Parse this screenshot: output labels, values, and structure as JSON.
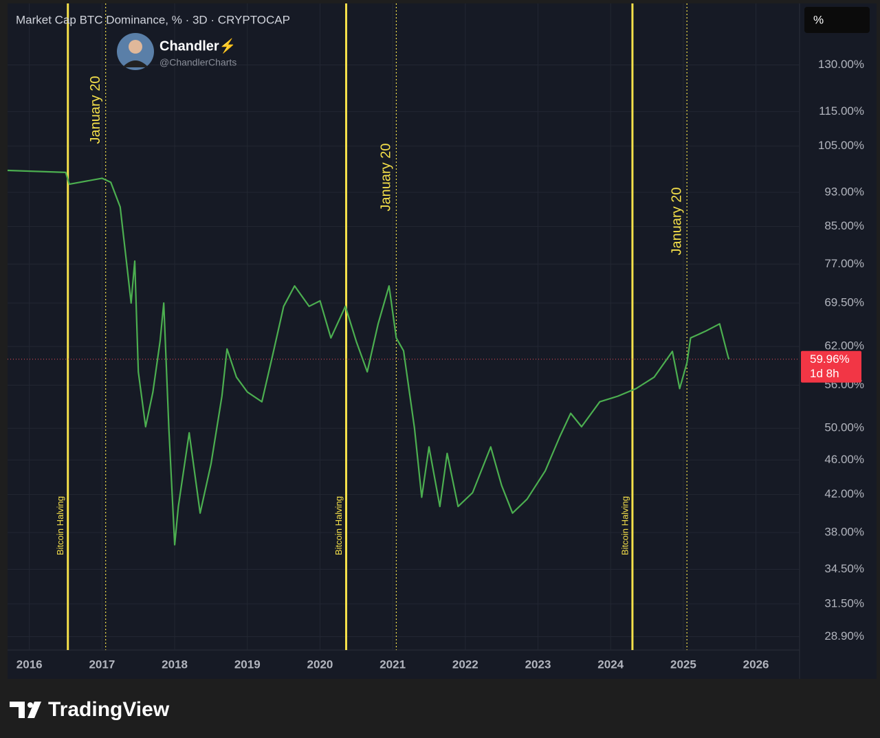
{
  "chart_data": {
    "type": "line",
    "title": "Market Cap BTC Dominance, % · 3D · CRYPTOCAP",
    "unit_button": "%",
    "watermark": {
      "name": "Chandler⚡",
      "handle": "@ChandlerCharts"
    },
    "x": [
      2015.7,
      2016.5,
      2016.55,
      2017.0,
      2017.12,
      2017.25,
      2017.35,
      2017.4,
      2017.45,
      2017.5,
      2017.6,
      2017.7,
      2017.8,
      2017.85,
      2017.92,
      2018.0,
      2018.05,
      2018.2,
      2018.35,
      2018.5,
      2018.65,
      2018.72,
      2018.85,
      2019.0,
      2019.2,
      2019.35,
      2019.5,
      2019.65,
      2019.85,
      2020.0,
      2020.15,
      2020.35,
      2020.5,
      2020.65,
      2020.8,
      2020.95,
      2021.05,
      2021.15,
      2021.3,
      2021.4,
      2021.5,
      2021.65,
      2021.75,
      2021.9,
      2022.1,
      2022.35,
      2022.5,
      2022.65,
      2022.85,
      2023.1,
      2023.3,
      2023.45,
      2023.6,
      2023.85,
      2024.1,
      2024.35,
      2024.6,
      2024.85,
      2024.95,
      2025.05,
      2025.1,
      2025.3,
      2025.5,
      2025.62,
      2025.63
    ],
    "series": [
      {
        "name": "BTC Dominance",
        "color": "#4caf50",
        "values": [
          98.5,
          98,
          95,
          96.5,
          95.5,
          89.5,
          75.7,
          69.5,
          77.6,
          58,
          50.2,
          55,
          62.9,
          69.5,
          50,
          36.8,
          40.7,
          49.4,
          40,
          45.5,
          54.4,
          61.6,
          57.2,
          55,
          53.6,
          60.7,
          68.9,
          72.7,
          68.9,
          69.9,
          63.4,
          68.9,
          62.8,
          58,
          65.8,
          72.7,
          63.4,
          61.3,
          50,
          41.7,
          47.6,
          40.7,
          46.8,
          40.7,
          42.2,
          47.6,
          43,
          40,
          41.5,
          44.7,
          48.9,
          52,
          50.2,
          53.6,
          54.4,
          55.5,
          57.2,
          61.2,
          55.5,
          59.4,
          63.4,
          64.5,
          65.8,
          60.2,
          59.96
        ]
      }
    ],
    "last_value": {
      "value": 59.96,
      "label": "59.96%",
      "countdown": "1d 8h"
    },
    "events": [
      {
        "x": 2016.53,
        "label": "Bitcoin Halving",
        "style": "solid"
      },
      {
        "x": 2017.05,
        "label": "January 20",
        "style": "dotted"
      },
      {
        "x": 2020.36,
        "label": "Bitcoin Halving",
        "style": "solid"
      },
      {
        "x": 2021.05,
        "label": "January 20",
        "style": "dotted"
      },
      {
        "x": 2024.3,
        "label": "Bitcoin Halving",
        "style": "solid"
      },
      {
        "x": 2025.05,
        "label": "January 20",
        "style": "dotted"
      }
    ],
    "log_scale": true,
    "grid": true,
    "xlim": [
      2015.7,
      2026.6
    ],
    "xticks": [
      2016,
      2017,
      2018,
      2019,
      2020,
      2021,
      2022,
      2023,
      2024,
      2025,
      2026
    ],
    "ylim": [
      27.9,
      152
    ],
    "yticks": [
      {
        "value": 130,
        "label": "130.00%"
      },
      {
        "value": 115,
        "label": "115.00%"
      },
      {
        "value": 105,
        "label": "105.00%"
      },
      {
        "value": 93,
        "label": "93.00%"
      },
      {
        "value": 85,
        "label": "85.00%"
      },
      {
        "value": 77,
        "label": "77.00%"
      },
      {
        "value": 69.5,
        "label": "69.50%"
      },
      {
        "value": 62,
        "label": "62.00%"
      },
      {
        "value": 56,
        "label": "56.00%"
      },
      {
        "value": 50,
        "label": "50.00%"
      },
      {
        "value": 46,
        "label": "46.00%"
      },
      {
        "value": 42,
        "label": "42.00%"
      },
      {
        "value": 38,
        "label": "38.00%"
      },
      {
        "value": 34.5,
        "label": "34.50%"
      },
      {
        "value": 31.5,
        "label": "31.50%"
      },
      {
        "value": 28.9,
        "label": "28.90%"
      }
    ]
  },
  "footer": {
    "brand": "TradingView"
  }
}
